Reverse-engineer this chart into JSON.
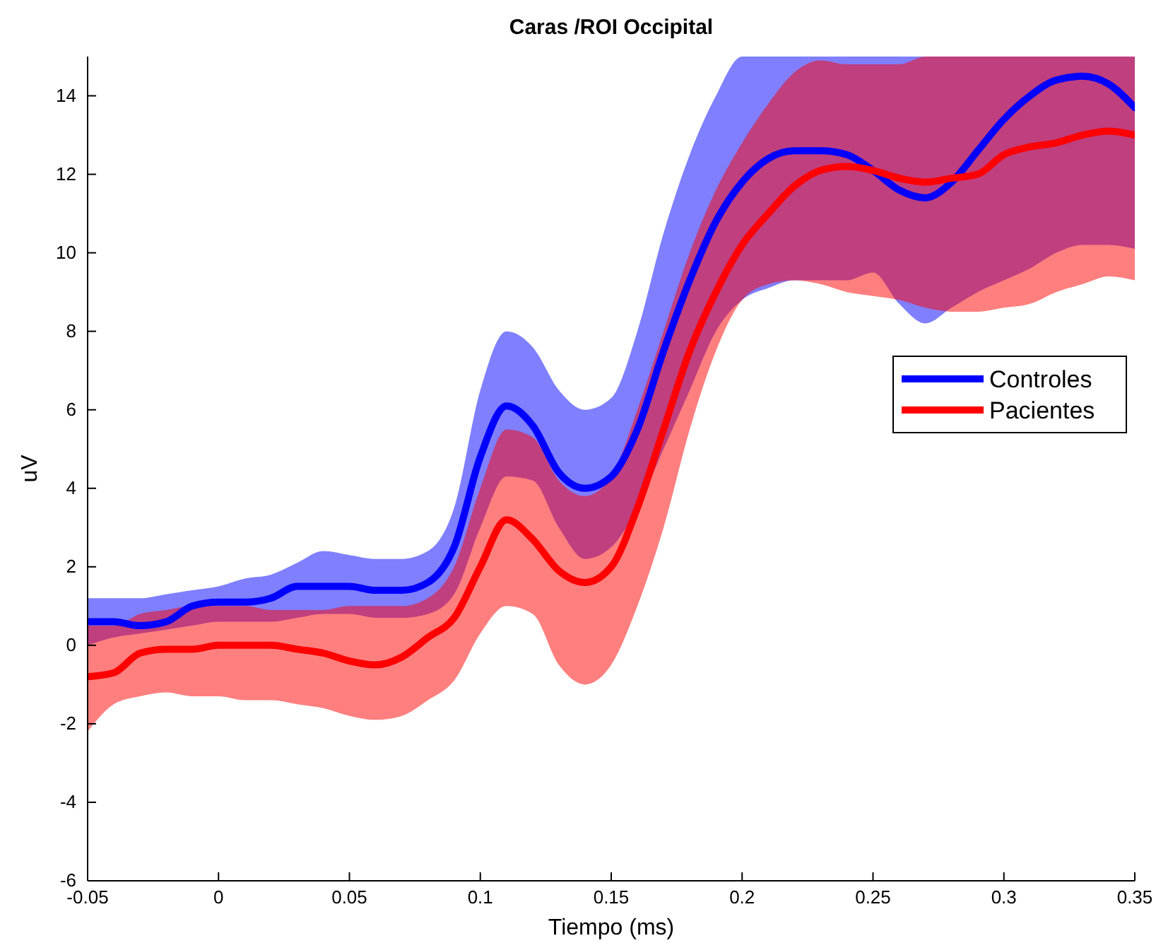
{
  "chart_data": {
    "type": "line",
    "title": "Caras /ROI Occipital",
    "xlabel": "Tiempo (ms)",
    "ylabel": "uV",
    "x": [
      -0.05,
      -0.04,
      -0.03,
      -0.02,
      -0.01,
      0,
      0.01,
      0.02,
      0.03,
      0.04,
      0.05,
      0.06,
      0.07,
      0.08,
      0.09,
      0.1,
      0.11,
      0.12,
      0.13,
      0.14,
      0.15,
      0.16,
      0.17,
      0.18,
      0.19,
      0.2,
      0.21,
      0.22,
      0.23,
      0.24,
      0.25,
      0.26,
      0.27,
      0.28,
      0.29,
      0.3,
      0.31,
      0.32,
      0.33,
      0.34,
      0.35
    ],
    "series": [
      {
        "name": "Controles",
        "color": "#0000ff",
        "values": [
          0.6,
          0.6,
          0.5,
          0.6,
          1.0,
          1.1,
          1.1,
          1.2,
          1.5,
          1.5,
          1.5,
          1.4,
          1.4,
          1.6,
          2.5,
          4.8,
          6.1,
          5.6,
          4.4,
          4.0,
          4.3,
          5.5,
          7.5,
          9.3,
          10.8,
          11.8,
          12.4,
          12.6,
          12.6,
          12.5,
          12.1,
          11.6,
          11.4,
          11.8,
          12.6,
          13.4,
          14.0,
          14.4,
          14.5,
          14.3,
          13.7
        ],
        "upper": [
          1.2,
          1.2,
          1.2,
          1.3,
          1.4,
          1.5,
          1.7,
          1.8,
          2.1,
          2.4,
          2.3,
          2.2,
          2.2,
          2.4,
          3.5,
          6.5,
          8.0,
          7.6,
          6.5,
          6.0,
          6.3,
          8.0,
          10.5,
          12.5,
          14.0,
          15,
          15,
          15,
          15,
          15,
          15,
          15,
          15,
          15,
          15,
          15,
          15,
          15,
          15,
          15,
          15
        ],
        "lower": [
          0.0,
          0.2,
          0.3,
          0.4,
          0.5,
          0.6,
          0.6,
          0.6,
          0.7,
          0.8,
          0.8,
          0.7,
          0.7,
          0.8,
          1.3,
          3.0,
          4.3,
          4.2,
          3.0,
          2.2,
          2.5,
          3.5,
          5.0,
          6.5,
          8.0,
          8.8,
          9.1,
          9.3,
          9.3,
          9.3,
          9.5,
          8.7,
          8.2,
          8.6,
          9.0,
          9.3,
          9.6,
          10.0,
          10.2,
          10.2,
          10.1
        ]
      },
      {
        "name": "Pacientes",
        "color": "#ff0000",
        "values": [
          -0.8,
          -0.7,
          -0.2,
          -0.1,
          -0.1,
          0,
          0,
          0,
          -0.1,
          -0.2,
          -0.4,
          -0.5,
          -0.3,
          0.2,
          0.7,
          2.0,
          3.2,
          2.7,
          1.9,
          1.6,
          2.0,
          3.5,
          5.5,
          7.5,
          9.0,
          10.2,
          11.0,
          11.7,
          12.1,
          12.2,
          12.1,
          11.9,
          11.8,
          11.9,
          12.0,
          12.5,
          12.7,
          12.8,
          13.0,
          13.1,
          13.0
        ],
        "upper": [
          0.5,
          0.5,
          0.8,
          0.9,
          1.0,
          1.0,
          1.0,
          0.9,
          0.9,
          0.9,
          1.0,
          1.0,
          1.0,
          1.2,
          2.0,
          4.0,
          5.5,
          5.3,
          4.2,
          3.8,
          4.3,
          6.0,
          8.0,
          10.0,
          11.6,
          12.8,
          13.8,
          14.6,
          14.9,
          14.8,
          14.8,
          14.8,
          15,
          15,
          15,
          15,
          15,
          15,
          15,
          15,
          15
        ],
        "lower": [
          -2.2,
          -1.5,
          -1.3,
          -1.2,
          -1.3,
          -1.3,
          -1.4,
          -1.4,
          -1.5,
          -1.6,
          -1.8,
          -1.9,
          -1.8,
          -1.4,
          -0.9,
          0.3,
          1.0,
          0.8,
          -0.5,
          -1.0,
          -0.5,
          1.0,
          3.0,
          5.5,
          7.5,
          8.8,
          9.2,
          9.3,
          9.2,
          9.0,
          8.9,
          8.8,
          8.6,
          8.5,
          8.5,
          8.6,
          8.7,
          9.0,
          9.2,
          9.4,
          9.3
        ]
      }
    ],
    "xlim": [
      -0.05,
      0.35
    ],
    "xticks": [
      -0.05,
      0,
      0.05,
      0.1,
      0.15,
      0.2,
      0.25,
      0.3,
      0.35
    ],
    "ylim": [
      -6,
      15
    ],
    "yticks": [
      -6,
      -4,
      -2,
      0,
      2,
      4,
      6,
      8,
      10,
      12,
      14
    ],
    "grid": false,
    "legend": "right",
    "marker": "none",
    "line_style": "solid"
  }
}
